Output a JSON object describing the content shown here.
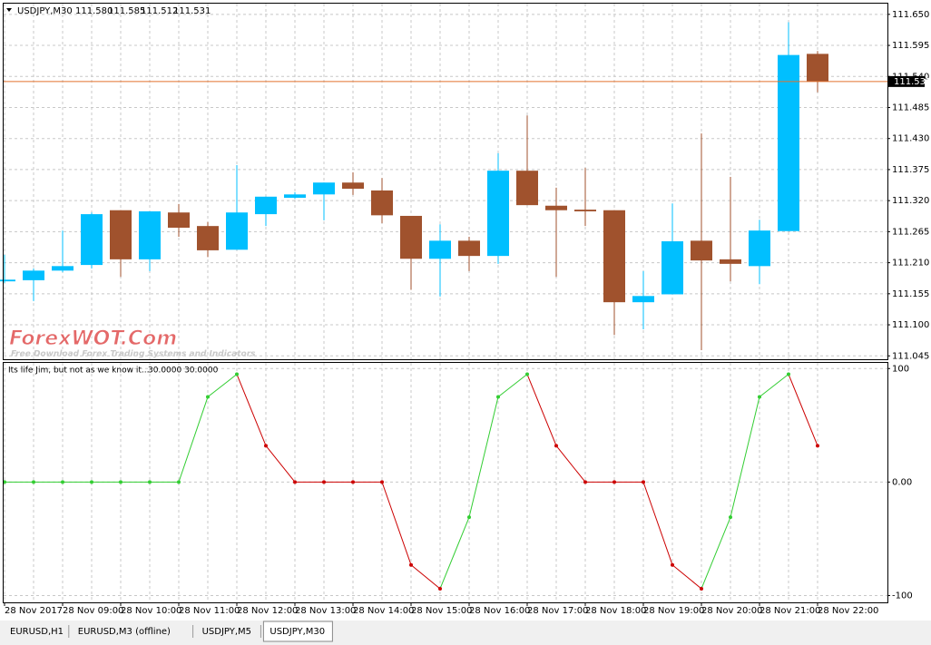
{
  "chart_data": [
    {
      "type": "candlestick",
      "title": "USDJPY,M30",
      "last_labels": {
        "open": "111.580",
        "high": "111.585",
        "low": "111.512",
        "close": "111.531"
      },
      "categories": [
        "28 Nov 2017",
        null,
        "28 Nov 09:00",
        null,
        "28 Nov 10:00",
        null,
        "28 Nov 11:00",
        null,
        "28 Nov 12:00",
        null,
        "28 Nov 13:00",
        null,
        "28 Nov 14:00",
        null,
        "28 Nov 15:00",
        null,
        "28 Nov 16:00",
        null,
        "28 Nov 17:00",
        null,
        "28 Nov 18:00",
        null,
        "28 Nov 19:00",
        null,
        "28 Nov 20:00",
        null,
        "28 Nov 21:00",
        null,
        "28 Nov 22:00"
      ],
      "open": [
        111.177,
        111.179,
        111.196,
        111.206,
        111.303,
        111.216,
        111.299,
        111.275,
        111.233,
        111.296,
        111.325,
        111.331,
        111.352,
        111.338,
        111.293,
        111.217,
        111.249,
        111.222,
        111.373,
        111.311,
        111.304,
        111.303,
        111.14,
        111.154,
        111.249,
        111.216,
        111.204,
        111.266,
        111.58
      ],
      "high": [
        111.224,
        111.2,
        111.267,
        111.299,
        111.303,
        111.301,
        111.314,
        111.282,
        111.383,
        111.327,
        111.335,
        111.352,
        111.37,
        111.36,
        111.293,
        111.278,
        111.256,
        111.404,
        111.471,
        111.343,
        111.378,
        111.303,
        111.195,
        111.315,
        111.439,
        111.362,
        111.286,
        111.636,
        111.585
      ],
      "low": [
        111.174,
        111.142,
        111.193,
        111.2,
        111.185,
        111.195,
        111.256,
        111.22,
        111.233,
        111.275,
        111.323,
        111.285,
        111.33,
        111.28,
        111.162,
        111.15,
        111.195,
        111.208,
        111.312,
        111.185,
        111.275,
        111.082,
        111.092,
        111.154,
        111.055,
        111.177,
        111.172,
        111.266,
        111.512
      ],
      "close": [
        111.18,
        111.196,
        111.204,
        111.296,
        111.216,
        111.301,
        111.272,
        111.232,
        111.299,
        111.327,
        111.331,
        111.352,
        111.341,
        111.294,
        111.217,
        111.249,
        111.222,
        111.373,
        111.312,
        111.303,
        111.301,
        111.14,
        111.151,
        111.248,
        111.214,
        111.208,
        111.267,
        111.578,
        111.531
      ],
      "up_color": "#00bfff",
      "down_color": "#a0522d",
      "price_line_color": "#e2722f",
      "ylim": [
        111.039,
        111.669
      ],
      "yticks": [
        111.045,
        {
          "value": 111.1,
          "label": "111.100"
        },
        111.155,
        {
          "value": 111.21,
          "label": "111.210"
        },
        111.265,
        {
          "value": 111.32,
          "label": "111.320"
        },
        111.375,
        {
          "value": 111.43,
          "label": "111.430"
        },
        111.485,
        {
          "value": 111.54,
          "label": "111.540"
        },
        111.595,
        {
          "value": 111.65,
          "label": "111.650"
        }
      ],
      "grid": true
    },
    {
      "type": "line",
      "title": "Its life Jim, but not as we know it...",
      "subtitle": "30.0000 30.0000",
      "values": [
        0,
        0,
        0,
        0,
        0,
        0,
        0,
        75,
        95,
        32,
        0,
        0,
        0,
        0,
        -73,
        -94,
        -31,
        75,
        95,
        32,
        0,
        0,
        0,
        -73,
        -94,
        -31,
        75,
        95,
        32
      ],
      "up_color": "#32cd32",
      "down_color": "#cc0000",
      "ylim": [
        -106,
        105
      ],
      "yticks": [
        100,
        {
          "value": 0,
          "label": "0.00"
        },
        -100
      ],
      "grid": true
    }
  ],
  "watermark": {
    "title": "ForexWOT.Com",
    "subtitle": "Free Download Forex Trading Systems and Indicators"
  },
  "tabs": [
    "EURUSD,H1",
    "EURUSD,M3 (offline)",
    "USDJPY,M5",
    "USDJPY,M30"
  ]
}
